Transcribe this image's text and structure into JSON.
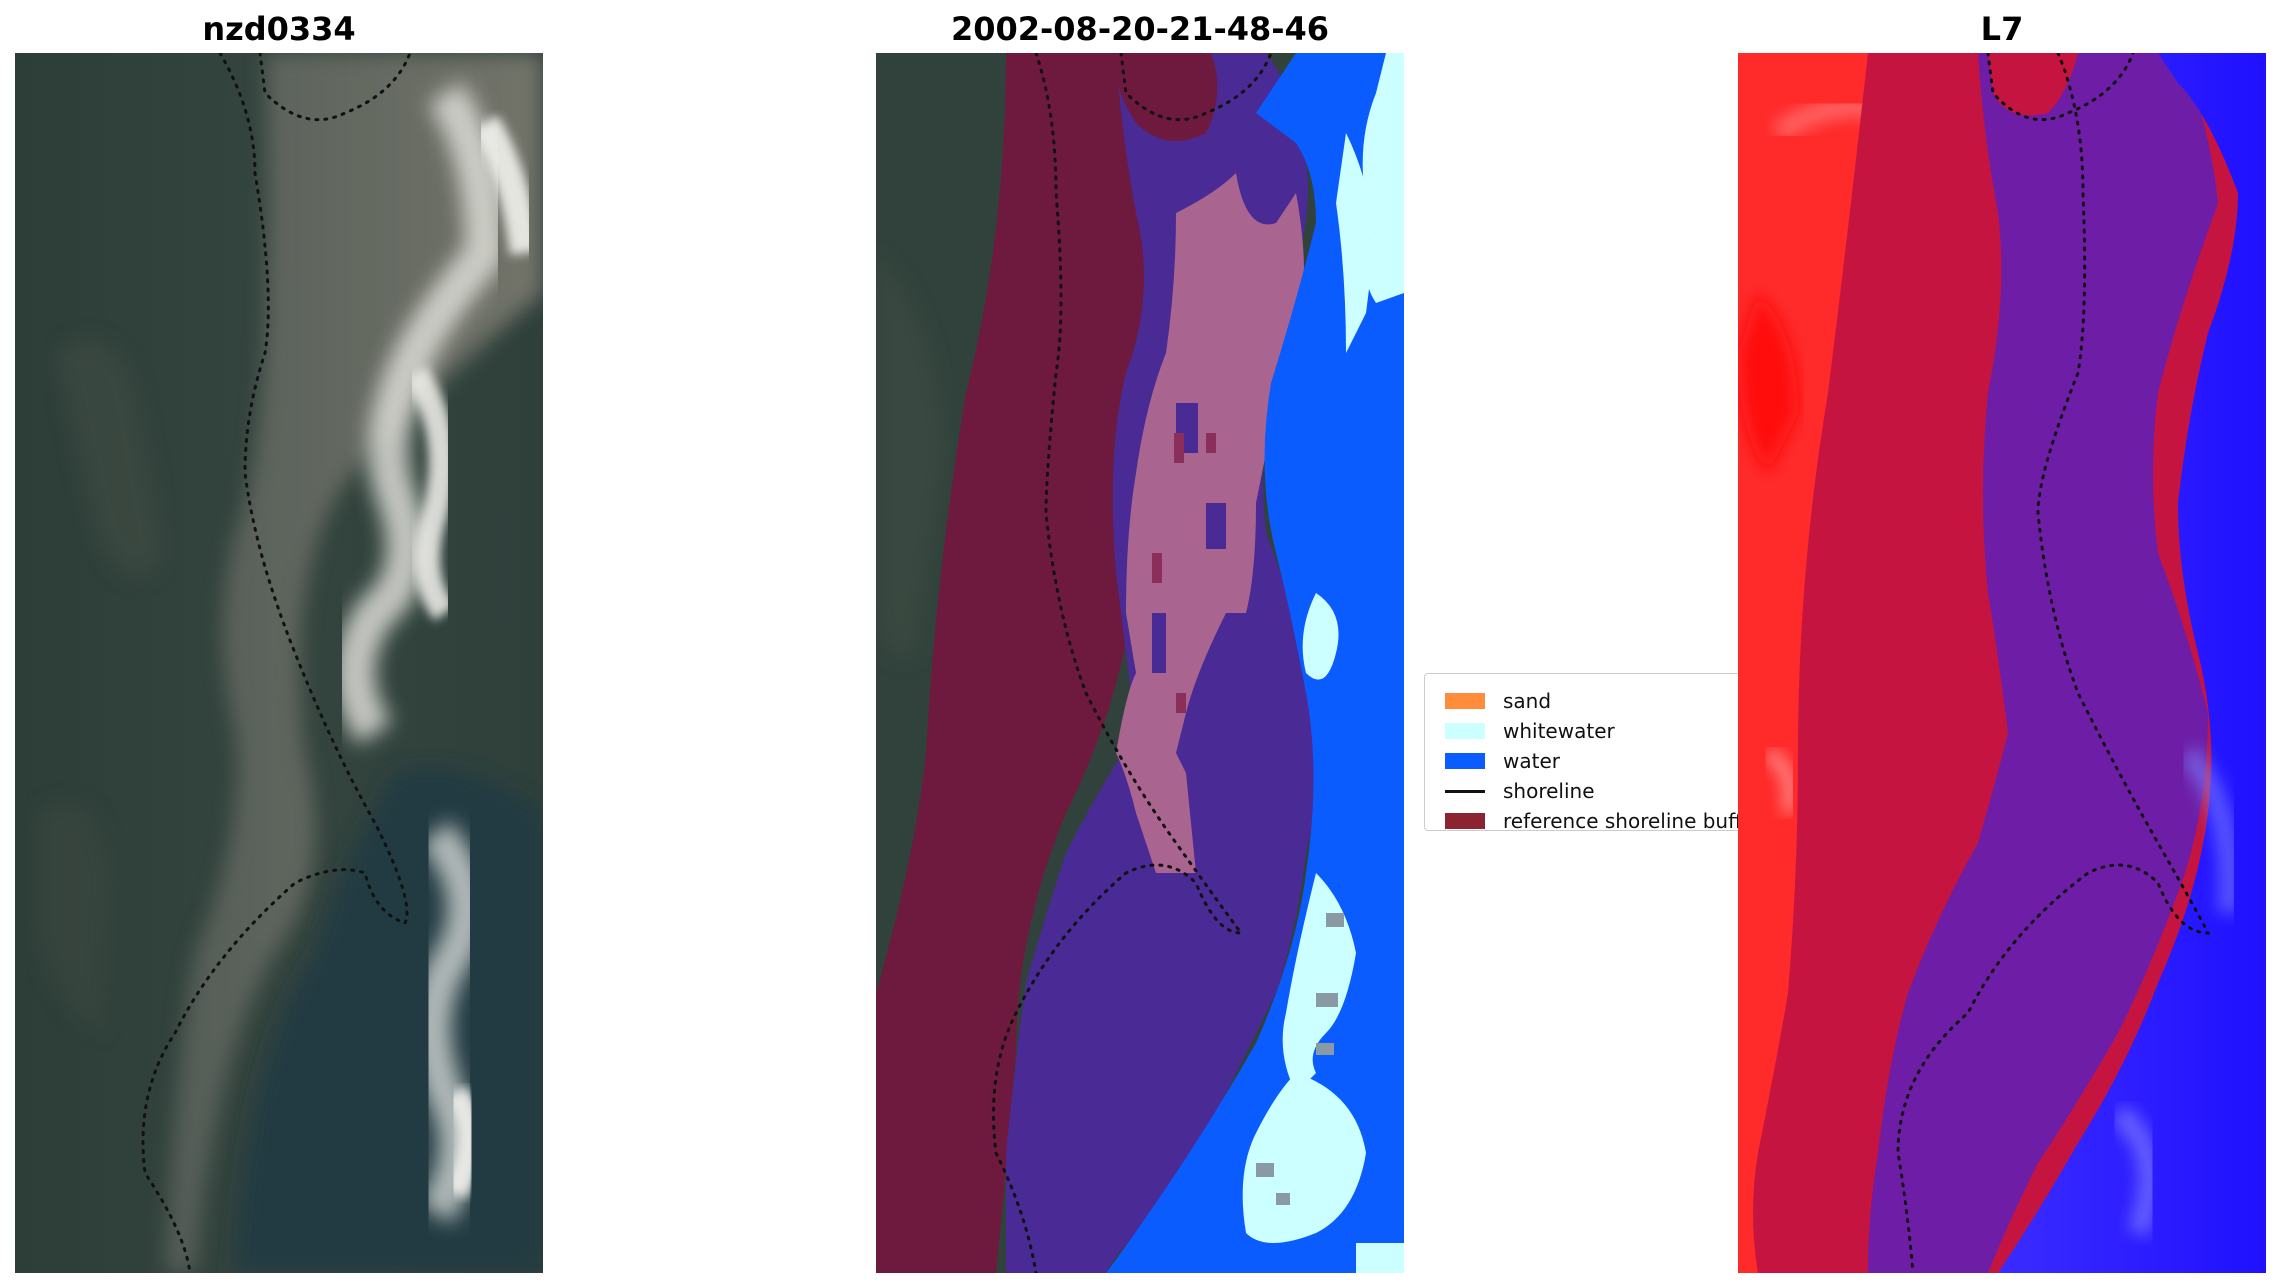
{
  "titles": {
    "left": "nzd0334",
    "middle": "2002-08-20-21-48-46",
    "right": "L7"
  },
  "legend": {
    "items": [
      {
        "label": "sand",
        "color": "#ff8c3a",
        "kind": "patch"
      },
      {
        "label": "whitewater",
        "color": "#ccffff",
        "kind": "patch"
      },
      {
        "label": "water",
        "color": "#0a5cff",
        "kind": "patch"
      },
      {
        "label": "shoreline",
        "color": "#111111",
        "kind": "line"
      },
      {
        "label": "reference shoreline buff",
        "color": "#8b2330",
        "kind": "patch"
      }
    ]
  },
  "colors": {
    "rgb_dark": "#2e403c",
    "rgb_beach": "#7d7b6f",
    "buffer": "#6e1a3e",
    "sand_class": "#a9658f",
    "buffer_water": "#4a2a94",
    "water": "#0a5cff",
    "whitewater": "#ccffff",
    "index_red": "#ff2a2a",
    "index_crimson": "#c5143f",
    "index_purple": "#6e1ea6",
    "index_blue": "#2a1cff"
  }
}
